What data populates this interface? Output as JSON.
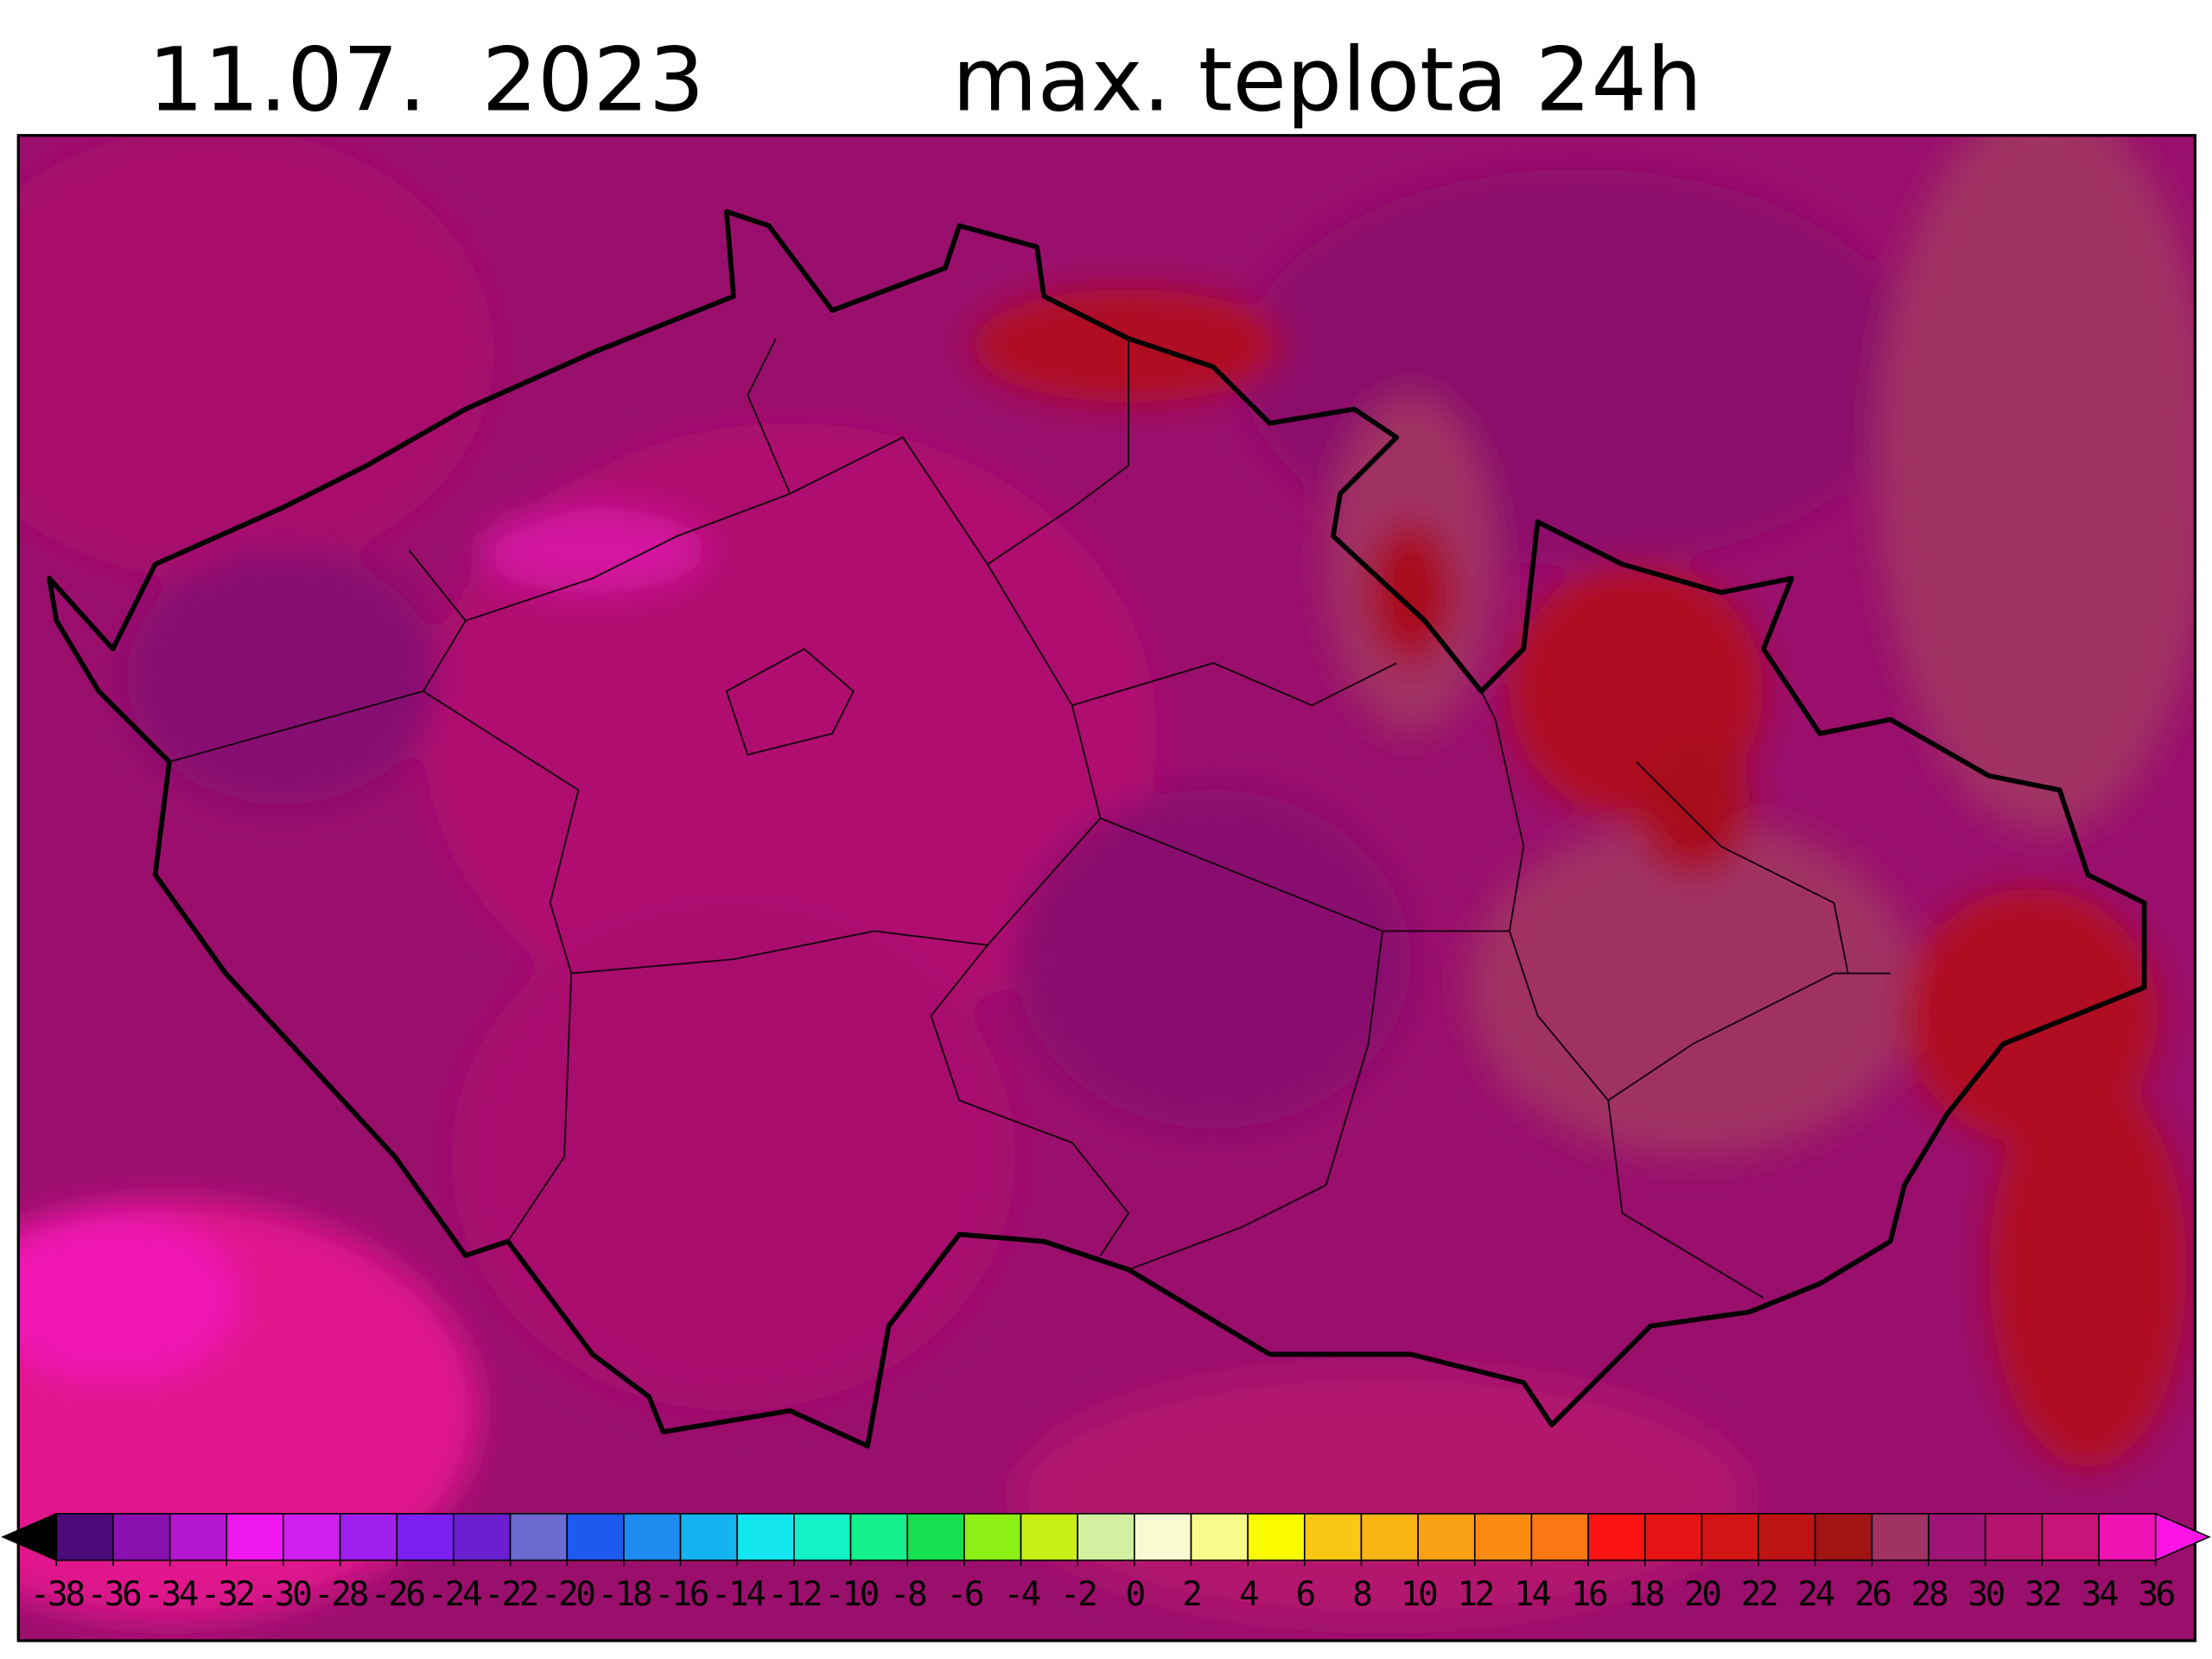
{
  "header": {
    "date": "11.07.  2023",
    "title": "max. teplota 24h"
  },
  "colorbar": {
    "ticks": [
      -38,
      -36,
      -34,
      -32,
      -30,
      -28,
      -26,
      -24,
      -22,
      -20,
      -18,
      -16,
      -14,
      -12,
      -10,
      -8,
      -6,
      -4,
      -2,
      0,
      2,
      4,
      6,
      8,
      10,
      12,
      14,
      16,
      18,
      20,
      22,
      24,
      26,
      28,
      30,
      32,
      34,
      36
    ],
    "colors": [
      "#4b0a7a",
      "#8a10b0",
      "#b516d0",
      "#f018f0",
      "#d020f0",
      "#a020f0",
      "#7a20f0",
      "#6a20d0",
      "#6a6ad0",
      "#1e5af0",
      "#1e8cf0",
      "#14b4f0",
      "#14e6f0",
      "#14f0c8",
      "#14f08c",
      "#14e050",
      "#8cf014",
      "#c8f014",
      "#d2f0a0",
      "#fafad2",
      "#fafa8c",
      "#fafa00",
      "#fac814",
      "#fab414",
      "#faa014",
      "#fa8c14",
      "#fa7814",
      "#fa1414",
      "#e61414",
      "#d21414",
      "#be1414",
      "#a01414",
      "#a03264",
      "#a01478",
      "#b4146e",
      "#c81478",
      "#f014b4"
    ],
    "under_color": "#000000",
    "over_color": "#ff14e6"
  }
}
